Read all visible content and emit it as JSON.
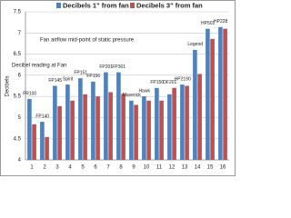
{
  "chart_data": {
    "type": "bar",
    "y_label": "Decibels",
    "annotations": [
      "Fan airflow mid-point of static pressure",
      "Decibel reading at Fan"
    ],
    "categories": [
      "1",
      "2",
      "3",
      "4",
      "5",
      "6",
      "7",
      "8",
      "9",
      "10",
      "11",
      "12",
      "13",
      "14",
      "15",
      "16"
    ],
    "bar_labels": [
      "FR100",
      "FP140",
      "FP145",
      "Spirit",
      "FP151",
      "FP156",
      "FP201",
      "FP301",
      "Maverick",
      "Hawk",
      "FP150",
      "OF201",
      "HP2190",
      "Legend",
      "HP501",
      "HP228"
    ],
    "series": [
      {
        "name": "Decibels 1\" from fan",
        "color": "#4f81bd",
        "values": [
          5.44,
          4.9,
          5.75,
          5.78,
          5.93,
          5.85,
          6.07,
          6.07,
          5.4,
          5.5,
          5.7,
          5.55,
          5.78,
          6.6,
          7.1,
          7.14
        ]
      },
      {
        "name": "Decibels 3\" from fan",
        "color": "#c0504d",
        "values": [
          4.84,
          4.54,
          5.27,
          5.4,
          5.55,
          5.5,
          5.6,
          5.56,
          5.3,
          5.4,
          5.4,
          5.7,
          5.75,
          6.03,
          6.86,
          7.1
        ]
      }
    ],
    "ylim": [
      4,
      7.5
    ],
    "yticks": [
      4,
      4.5,
      5,
      5.5,
      6,
      6.5,
      7,
      7.5
    ],
    "grid": true
  }
}
